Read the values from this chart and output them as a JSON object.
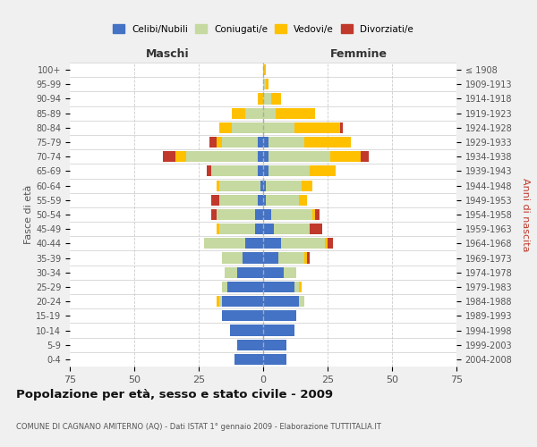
{
  "age_groups": [
    "0-4",
    "5-9",
    "10-14",
    "15-19",
    "20-24",
    "25-29",
    "30-34",
    "35-39",
    "40-44",
    "45-49",
    "50-54",
    "55-59",
    "60-64",
    "65-69",
    "70-74",
    "75-79",
    "80-84",
    "85-89",
    "90-94",
    "95-99",
    "100+"
  ],
  "birth_years": [
    "2004-2008",
    "1999-2003",
    "1994-1998",
    "1989-1993",
    "1984-1988",
    "1979-1983",
    "1974-1978",
    "1969-1973",
    "1964-1968",
    "1959-1963",
    "1954-1958",
    "1949-1953",
    "1944-1948",
    "1939-1943",
    "1934-1938",
    "1929-1933",
    "1924-1928",
    "1919-1923",
    "1914-1918",
    "1909-1913",
    "≤ 1908"
  ],
  "male": {
    "celibi": [
      11,
      10,
      13,
      16,
      16,
      14,
      10,
      8,
      7,
      3,
      3,
      2,
      1,
      2,
      2,
      2,
      0,
      0,
      0,
      0,
      0
    ],
    "coniugati": [
      0,
      0,
      0,
      0,
      1,
      2,
      5,
      8,
      16,
      14,
      15,
      15,
      16,
      18,
      28,
      14,
      12,
      7,
      0,
      0,
      0
    ],
    "vedovi": [
      0,
      0,
      0,
      0,
      1,
      0,
      0,
      0,
      0,
      1,
      0,
      0,
      1,
      0,
      4,
      2,
      5,
      5,
      2,
      0,
      0
    ],
    "divorziati": [
      0,
      0,
      0,
      0,
      0,
      0,
      0,
      0,
      0,
      0,
      2,
      3,
      0,
      2,
      5,
      3,
      0,
      0,
      0,
      0,
      0
    ]
  },
  "female": {
    "nubili": [
      9,
      9,
      12,
      13,
      14,
      12,
      8,
      6,
      7,
      4,
      3,
      1,
      1,
      2,
      2,
      2,
      0,
      0,
      0,
      0,
      0
    ],
    "coniugate": [
      0,
      0,
      0,
      0,
      2,
      2,
      5,
      10,
      17,
      14,
      16,
      13,
      14,
      16,
      24,
      14,
      12,
      5,
      3,
      1,
      0
    ],
    "vedove": [
      0,
      0,
      0,
      0,
      0,
      1,
      0,
      1,
      1,
      0,
      1,
      3,
      4,
      10,
      12,
      18,
      18,
      15,
      4,
      1,
      1
    ],
    "divorziate": [
      0,
      0,
      0,
      0,
      0,
      0,
      0,
      1,
      2,
      5,
      2,
      0,
      0,
      0,
      3,
      0,
      1,
      0,
      0,
      0,
      0
    ]
  },
  "colors": {
    "celibi": "#4472c4",
    "coniugati": "#c5d9a0",
    "vedovi": "#ffc000",
    "divorziati": "#c0392b"
  },
  "title": "Popolazione per età, sesso e stato civile - 2009",
  "subtitle": "COMUNE DI CAGNANO AMITERNO (AQ) - Dati ISTAT 1° gennaio 2009 - Elaborazione TUTTITALIA.IT",
  "xlabel_left": "Maschi",
  "xlabel_right": "Femmine",
  "ylabel_left": "Fasce di età",
  "ylabel_right": "Anni di nascita",
  "xlim": 75,
  "bg_color": "#f0f0f0",
  "plot_bg": "#ffffff"
}
